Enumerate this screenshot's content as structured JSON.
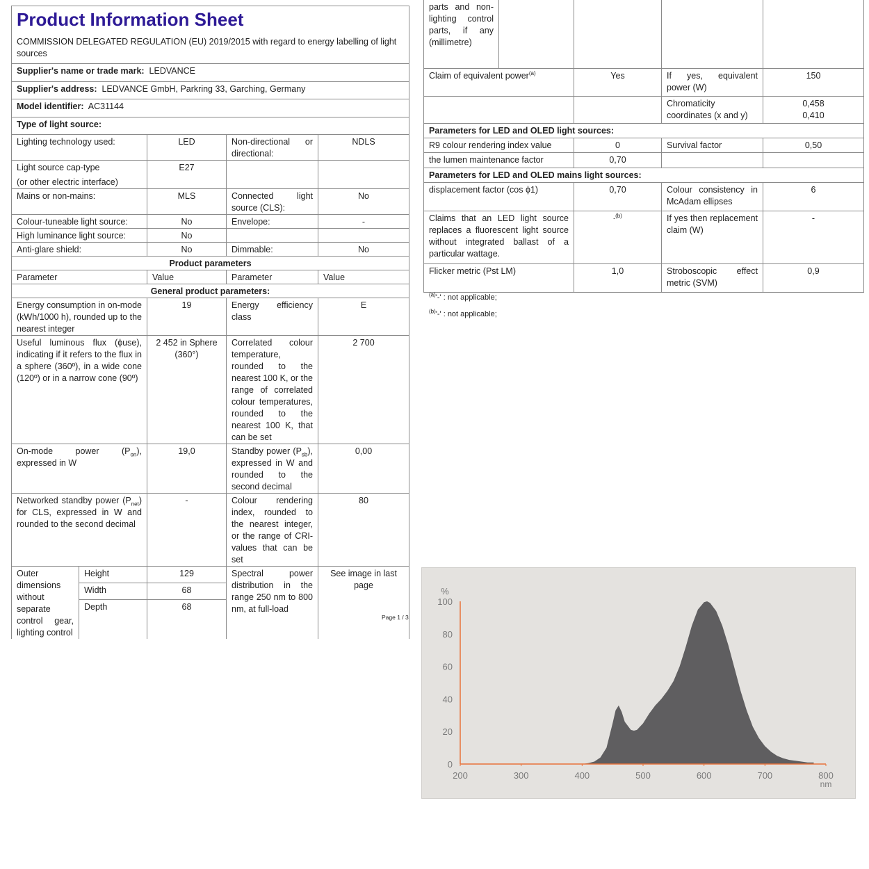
{
  "left": {
    "title": "Product Information Sheet",
    "regulation": "COMMISSION DELEGATED REGULATION (EU) 2019/2015 with regard to energy labelling of light sources",
    "supplier_name_label": "Supplier's name or trade mark:",
    "supplier_name": "LEDVANCE",
    "address_label": "Supplier's address:",
    "address": "LEDVANCE GmbH, Parkring 33, Garching, Germany",
    "model_label": "Model identifier:",
    "model": "AC31144",
    "type_label": "Type of light source:",
    "rows": [
      [
        "Lighting technology used:",
        "LED",
        "Non-directional or directional:",
        "NDLS"
      ],
      [
        "Light source cap-type",
        "E27",
        "",
        "",
        "(or other electric interface)"
      ],
      [
        "Mains or non-mains:",
        "MLS",
        "Connected light source (CLS):",
        "No"
      ],
      [
        "Colour-tuneable light source:",
        "No",
        "Envelope:",
        "-"
      ],
      [
        "High luminance light source:",
        "No",
        "",
        ""
      ],
      [
        "Anti-glare shield:",
        "No",
        "Dimmable:",
        "No"
      ]
    ],
    "product_parameters": "Product parameters",
    "headers": [
      "Parameter",
      "Value",
      "Parameter",
      "Value"
    ],
    "general": "General product parameters:",
    "params": [
      [
        "Energy consumption in on-mode (kWh/1000 h), rounded up to the nearest integer",
        "19",
        "Energy efficiency class",
        "E"
      ],
      [
        "Useful luminous flux (ϕuse), indicating if it refers to the flux in a sphere (360º), in a wide cone (120º) or in a narrow cone (90º)",
        "2 452 in Sphere (360°)",
        "Correlated colour temperature, rounded to the nearest 100 K, or the range of correlated colour temperatures, rounded to the nearest 100 K, that can be set",
        "2 700"
      ]
    ],
    "onmode": {
      "a": "On-mode power (P",
      "sub": "on",
      "b": "), expressed in W",
      "value": "19,0",
      "p2a": "Standby power (P",
      "p2sub": "sb",
      "p2b": "), expressed in W and rounded to the second decimal",
      "value2": "0,00"
    },
    "networked": {
      "a": "Networked standby power (P",
      "sub": "net",
      "b": ") for CLS, expressed in W and rounded to the second decimal",
      "value": "-",
      "p2": "Colour rendering index, rounded to the nearest integer, or the range of CRI-values that can be set",
      "value2": "80"
    },
    "outer": {
      "label": "Outer dimensions without separate control gear, lighting control",
      "dims": [
        [
          "Height",
          "129"
        ],
        [
          "Width",
          "68"
        ],
        [
          "Depth",
          "68"
        ]
      ],
      "p2": "Spectral power distribution in the range 250 nm to 800 nm, at full-load",
      "value2": "See image in last page"
    },
    "page": "Page 1 / 3"
  },
  "right": {
    "outer_cont": "parts and non-lighting control parts, if any (millimetre)",
    "claim": {
      "label": "Claim of equivalent power",
      "sup": "(a)",
      "value": "Yes",
      "p2": "If yes, equivalent power (W)",
      "value2": "150"
    },
    "chroma": {
      "p2": "Chromaticity coordinates (x and y)",
      "x": "0,458",
      "y": "0,410"
    },
    "led_header": "Parameters for LED and OLED light sources:",
    "r9": [
      "R9 colour rendering index value",
      "0",
      "Survival factor",
      "0,50"
    ],
    "lumen": [
      "the lumen maintenance factor",
      "0,70",
      "",
      ""
    ],
    "mains_header": "Parameters for LED and OLED mains light sources:",
    "disp": [
      "displacement factor (cos ϕ1)",
      "0,70",
      "Colour consistency in McAdam ellipses",
      "6"
    ],
    "claims": [
      "Claims that an LED light source replaces a fluorescent light source without integrated ballast of a particular wattage.",
      "-",
      "If yes then replacement claim (W)",
      "-"
    ],
    "claims_sup": "(b)",
    "flicker": [
      "Flicker metric (Pst LM)",
      "1,0",
      "Stroboscopic effect metric (SVM)",
      "0,9"
    ],
    "footnotes": [
      {
        "sup": "(a)",
        "text": "'-' : not applicable;"
      },
      {
        "sup": "(b)",
        "text": "'-' : not applicable;"
      }
    ]
  },
  "chart_data": {
    "type": "area",
    "xlabel": "nm",
    "ylabel": "%",
    "xlim": [
      200,
      800
    ],
    "ylim": [
      0,
      100
    ],
    "xticks": [
      200,
      300,
      400,
      500,
      600,
      700,
      800
    ],
    "yticks": [
      0,
      20,
      40,
      60,
      80,
      100
    ],
    "grid": false,
    "colors": {
      "fill": "#5f5e60",
      "axis": "#e8733a",
      "background": "#e4e2df"
    },
    "x": [
      400,
      410,
      420,
      430,
      440,
      450,
      455,
      460,
      465,
      470,
      480,
      485,
      490,
      500,
      510,
      520,
      530,
      540,
      550,
      560,
      570,
      580,
      590,
      600,
      605,
      610,
      620,
      630,
      640,
      650,
      660,
      670,
      680,
      690,
      700,
      710,
      720,
      730,
      740,
      750,
      760,
      770,
      780
    ],
    "y": [
      0,
      0.5,
      1.5,
      4,
      10,
      25,
      33,
      36,
      32,
      26,
      21,
      20.5,
      21,
      25,
      31,
      36,
      40,
      45,
      51,
      60,
      72,
      85,
      95,
      99.5,
      100,
      99,
      94,
      85,
      73,
      59,
      45,
      33,
      23,
      16,
      11,
      7.5,
      5,
      3.5,
      2.5,
      2,
      1.5,
      1,
      1
    ]
  }
}
